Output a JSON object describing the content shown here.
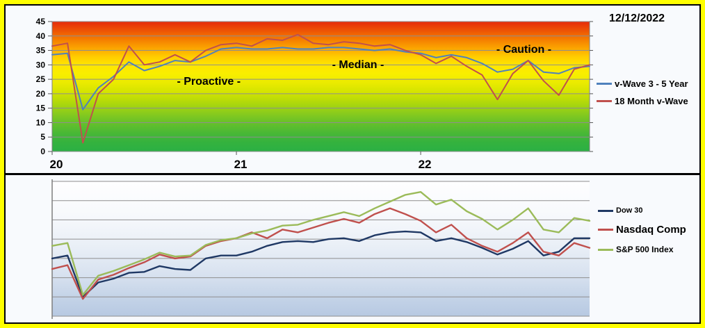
{
  "header": {
    "date": "12/12/2022"
  },
  "colors": {
    "frame": "#FFFF00",
    "inner_background": "#F8FAFD",
    "divider": "#000000",
    "grid": "#8E8E8E",
    "axis": "#7F7F7F",
    "text": "#000000"
  },
  "chart_data": [
    {
      "id": "vwave",
      "type": "line",
      "title": "",
      "grid": true,
      "legend_position": "right",
      "ylim": [
        0,
        45
      ],
      "ytick_step": 5,
      "ytick_labels": [
        "0",
        "5",
        "10",
        "15",
        "20",
        "25",
        "30",
        "35",
        "40",
        "45"
      ],
      "x_start_year": 20,
      "points_per_month": 1,
      "xticks": [
        {
          "label": "20",
          "year": 20
        },
        {
          "label": "21",
          "year": 21
        },
        {
          "label": "22",
          "year": 22
        }
      ],
      "background_gradient": [
        [
          0.0,
          "#E62B0B"
        ],
        [
          0.07,
          "#ED5405"
        ],
        [
          0.14,
          "#F57F00"
        ],
        [
          0.21,
          "#FCA800"
        ],
        [
          0.27,
          "#FFCC00"
        ],
        [
          0.33,
          "#FFE400"
        ],
        [
          0.4,
          "#F9EE00"
        ],
        [
          0.47,
          "#EBEB00"
        ],
        [
          0.54,
          "#D5E400"
        ],
        [
          0.62,
          "#B2D90A"
        ],
        [
          0.7,
          "#8CCC1B"
        ],
        [
          0.78,
          "#66C02A"
        ],
        [
          0.86,
          "#48B836"
        ],
        [
          0.93,
          "#34B23E"
        ],
        [
          1.0,
          "#2BB044"
        ]
      ],
      "series": [
        {
          "name": "v-Wave 3 - 5 Year",
          "color": "#4F81BD",
          "values": [
            33.5,
            34,
            14.5,
            22,
            26,
            31,
            28,
            29.5,
            31.5,
            31,
            33,
            35.5,
            36,
            35.5,
            35.5,
            36,
            35.5,
            35.5,
            36,
            36,
            35.5,
            35,
            35.5,
            34.5,
            34,
            32.5,
            33.5,
            32.5,
            30.5,
            27.5,
            28.5,
            31.5,
            27.5,
            27,
            29,
            29.5
          ]
        },
        {
          "name": "18 Month v-Wave",
          "color": "#C0504D",
          "values": [
            36.5,
            37.5,
            3,
            20,
            25,
            36.5,
            30,
            31,
            33.5,
            31,
            35,
            37,
            37.5,
            36.5,
            39,
            38.5,
            40.5,
            37.5,
            37,
            38,
            37.5,
            36.5,
            37,
            35,
            33.5,
            30.5,
            33,
            29.5,
            26.5,
            18,
            27,
            31.5,
            24.5,
            19.5,
            28.5,
            30
          ]
        }
      ],
      "annotations": [
        {
          "text": "- Proactive -",
          "x": 20.85,
          "y": 24.3
        },
        {
          "text": "- Median -",
          "x": 21.66,
          "y": 30.1
        },
        {
          "text": "- Caution -",
          "x": 22.56,
          "y": 35.4
        }
      ]
    },
    {
      "id": "indices",
      "type": "line",
      "title": "",
      "grid": true,
      "legend_position": "right",
      "ylim": [
        0,
        70
      ],
      "ytick_step": 10,
      "x_start_year": 20,
      "background_gradient": [
        [
          0.0,
          "#FEFEFF"
        ],
        [
          0.25,
          "#F7F9FC"
        ],
        [
          0.5,
          "#E8EEF6"
        ],
        [
          0.7,
          "#D7E1EF"
        ],
        [
          0.85,
          "#C5D4E8"
        ],
        [
          1.0,
          "#B7C9E2"
        ]
      ],
      "series": [
        {
          "name": "Dow 30",
          "color": "#1F3864",
          "values": [
            30,
            31.5,
            10,
            17.5,
            19.5,
            22.5,
            23,
            26,
            24.5,
            24,
            30,
            31.5,
            31.5,
            33.5,
            36.5,
            38.5,
            39,
            38.5,
            40,
            40.5,
            39,
            42,
            43.5,
            44,
            43.5,
            39,
            40.5,
            38.5,
            35.5,
            32,
            35,
            39,
            31.5,
            33.5,
            40.5,
            40.5
          ]
        },
        {
          "name": "Nasdaq Comp",
          "color": "#C0504D",
          "values": [
            24.5,
            26.5,
            9,
            19,
            21.5,
            25,
            28,
            32,
            30,
            31,
            36.5,
            39,
            40.5,
            43.5,
            40.5,
            45,
            43.5,
            46,
            48.5,
            50.5,
            48.5,
            53,
            56,
            53,
            49.5,
            43.5,
            47.5,
            40.5,
            36.5,
            33.5,
            38,
            43.5,
            33.5,
            31.5,
            38,
            35.5
          ]
        },
        {
          "name": "S&P 500 Index",
          "color": "#9BBB59",
          "values": [
            36.5,
            38,
            11,
            21,
            23.5,
            26.5,
            29.5,
            33,
            31,
            31.5,
            37,
            39.5,
            40.5,
            43,
            44.5,
            47,
            47.5,
            50,
            52,
            54,
            52,
            56,
            59.5,
            63,
            64.5,
            58,
            60.5,
            54.5,
            50.5,
            45,
            50,
            56,
            45,
            43.5,
            51,
            49.5
          ]
        }
      ]
    }
  ]
}
